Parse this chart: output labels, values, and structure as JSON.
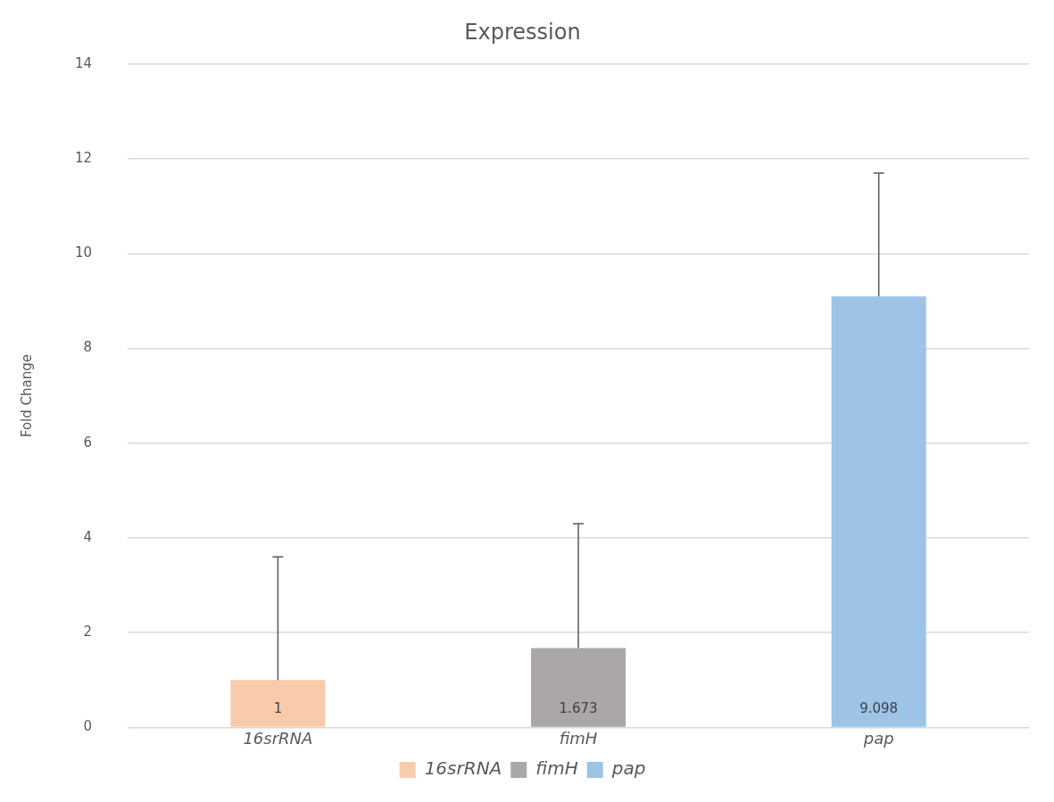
{
  "chart_data": {
    "type": "bar",
    "title": "Expression",
    "ylabel": "Fold Change",
    "categories": [
      "16srRNA",
      "fimH",
      "pap"
    ],
    "series": [
      {
        "name": "16srRNA",
        "color": "#f8cbad",
        "values": [
          1,
          null,
          null
        ],
        "errors": [
          [
            1,
            3.6
          ],
          null,
          null
        ]
      },
      {
        "name": "fimH",
        "color": "#aaa7a6",
        "values": [
          null,
          1.673,
          null
        ],
        "errors": [
          null,
          [
            1.673,
            4.3
          ],
          null
        ]
      },
      {
        "name": "pap",
        "color": "#9dc3e6",
        "values": [
          null,
          null,
          9.098
        ],
        "errors": [
          null,
          null,
          [
            9.098,
            11.7
          ]
        ]
      }
    ],
    "ylim": [
      0,
      14
    ],
    "yticks": [
      0,
      2,
      4,
      6,
      8,
      10,
      12,
      14
    ],
    "grid": "y",
    "legend": "bottom",
    "data_labels": true
  }
}
